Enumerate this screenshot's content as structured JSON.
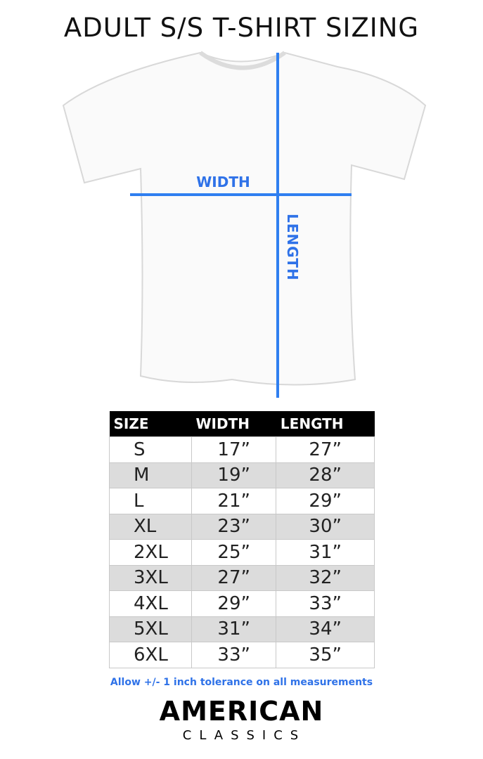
{
  "title": "ADULT S/S T-SHIRT SIZING",
  "diagram": {
    "width_label": "WIDTH",
    "length_label": "LENGTH",
    "line_color": "#2f7ff0"
  },
  "table": {
    "headers": [
      "SIZE",
      "WIDTH",
      "LENGTH"
    ],
    "rows": [
      [
        "S",
        "17”",
        "27”"
      ],
      [
        "M",
        "19”",
        "28”"
      ],
      [
        "L",
        "21”",
        "29”"
      ],
      [
        "XL",
        "23”",
        "30”"
      ],
      [
        "2XL",
        "25”",
        "31”"
      ],
      [
        "3XL",
        "27”",
        "32”"
      ],
      [
        "4XL",
        "29”",
        "33”"
      ],
      [
        "5XL",
        "31”",
        "34”"
      ],
      [
        "6XL",
        "33”",
        "35”"
      ]
    ]
  },
  "note": "Allow +/- 1 inch tolerance on all measurements",
  "logo": {
    "line1": "AMERICAN",
    "line2": "CLASSICS"
  }
}
